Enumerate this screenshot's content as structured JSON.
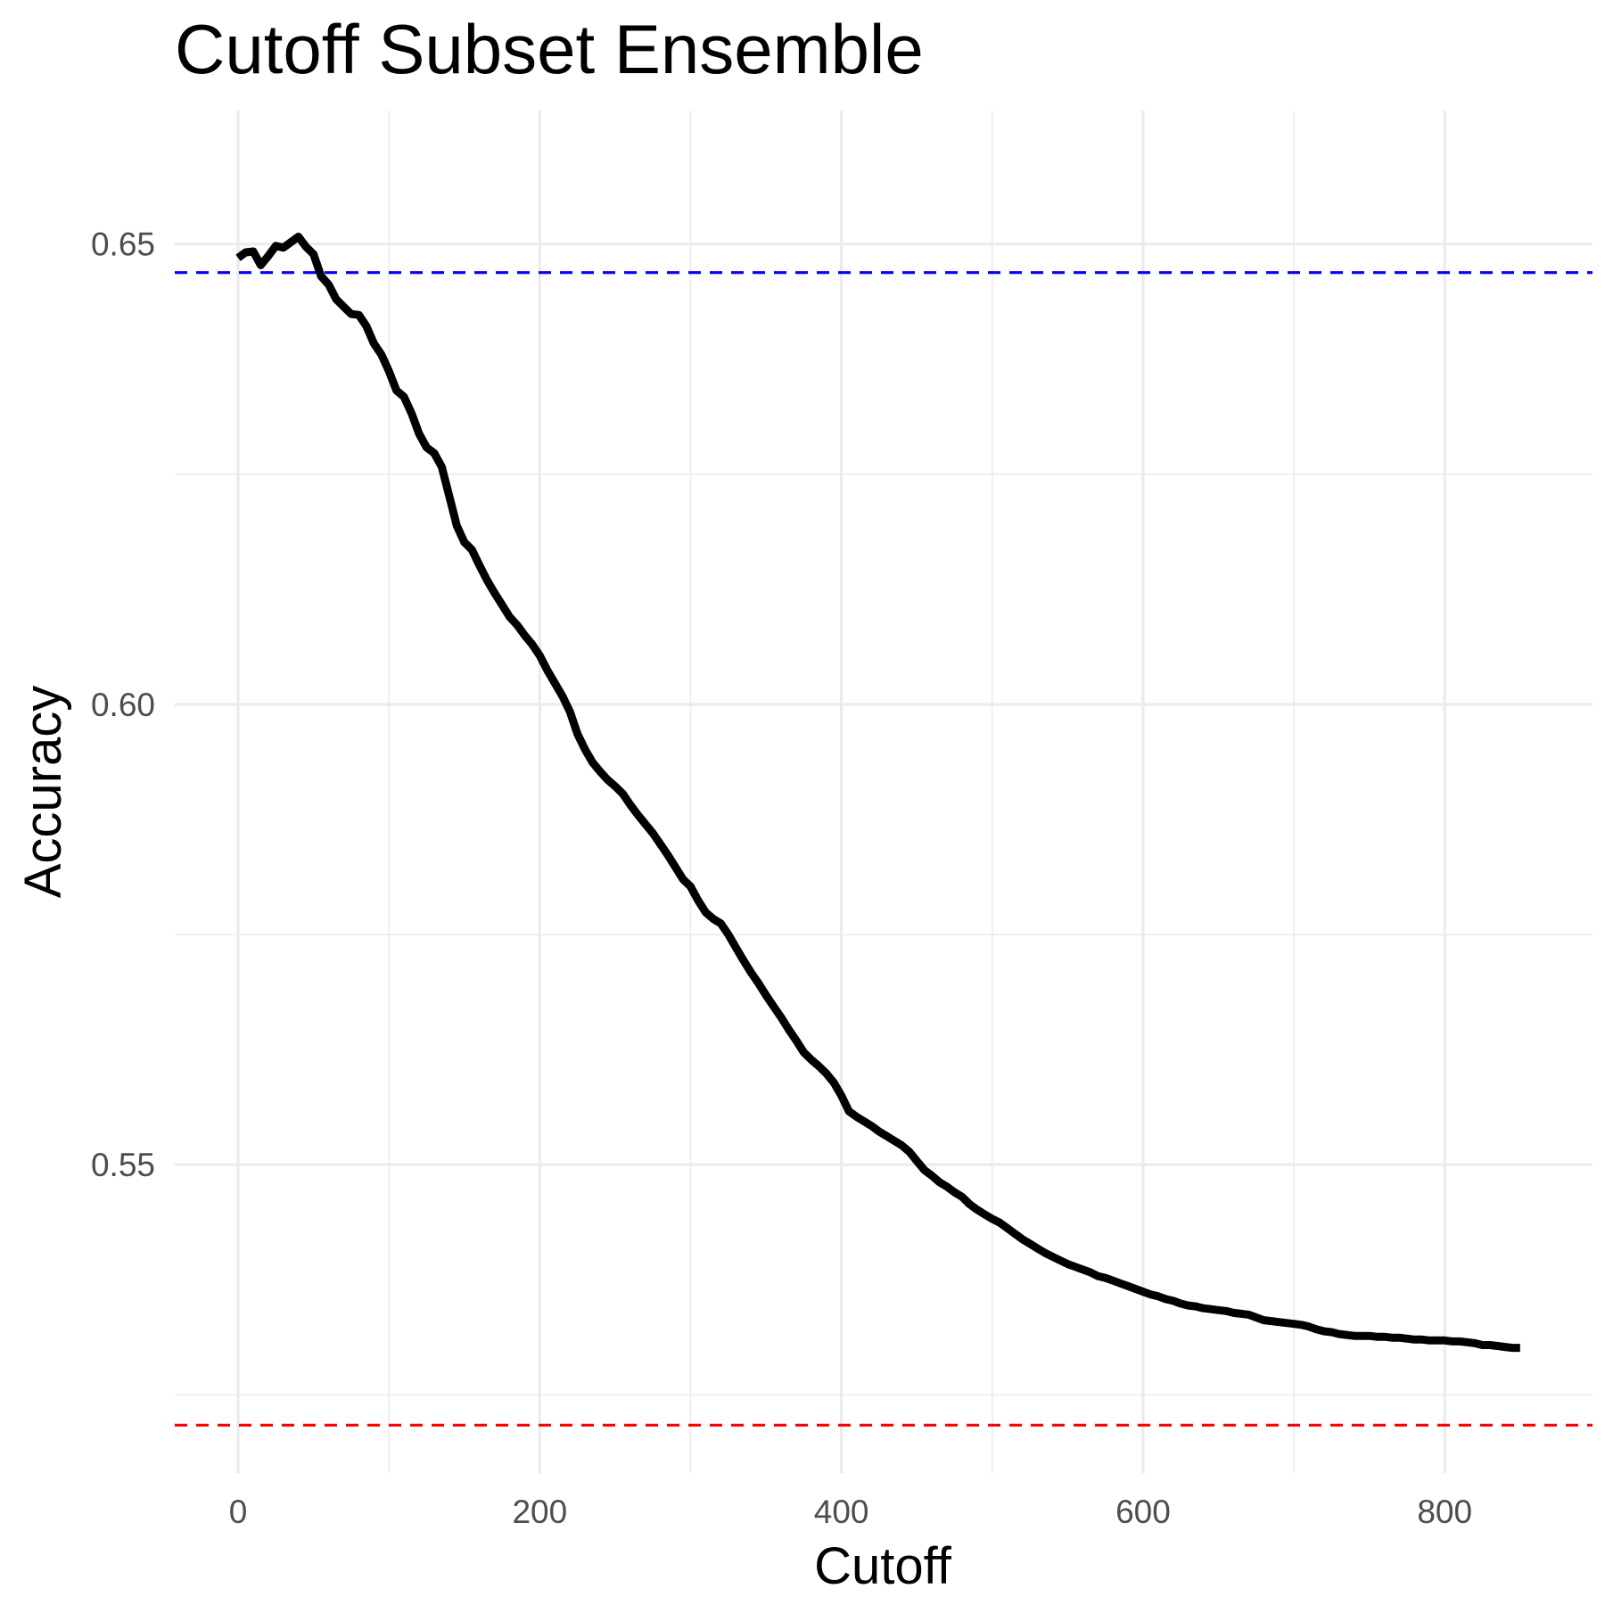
{
  "chart_data": {
    "type": "line",
    "title": "Cutoff Subset Ensemble",
    "xlabel": "Cutoff",
    "ylabel": "Accuracy",
    "xlim": [
      -42,
      898
    ],
    "ylim": [
      0.5165,
      0.6645
    ],
    "x_ticks": [
      0,
      200,
      400,
      600,
      800
    ],
    "x_tick_labels": [
      "0",
      "200",
      "400",
      "600",
      "800"
    ],
    "x_minor_ticks": [
      100,
      300,
      500,
      700
    ],
    "y_ticks": [
      0.55,
      0.6,
      0.65
    ],
    "y_tick_labels": [
      "0.55",
      "0.60",
      "0.65"
    ],
    "y_minor_ticks": [
      0.525,
      0.575,
      0.625
    ],
    "grid": true,
    "legend": "none",
    "series": [
      {
        "color": "#000000",
        "style": "solid",
        "points": [
          [
            0,
            0.6485
          ],
          [
            5,
            0.6491
          ],
          [
            10,
            0.6492
          ],
          [
            15,
            0.6477
          ],
          [
            20,
            0.6487
          ],
          [
            25,
            0.6498
          ],
          [
            30,
            0.6496
          ],
          [
            35,
            0.6502
          ],
          [
            40,
            0.6508
          ],
          [
            45,
            0.6497
          ],
          [
            50,
            0.6489
          ],
          [
            55,
            0.6465
          ],
          [
            60,
            0.6456
          ],
          [
            65,
            0.644
          ],
          [
            70,
            0.6432
          ],
          [
            75,
            0.6424
          ],
          [
            80,
            0.6423
          ],
          [
            85,
            0.6411
          ],
          [
            90,
            0.6392
          ],
          [
            95,
            0.638
          ],
          [
            100,
            0.6362
          ],
          [
            105,
            0.6341
          ],
          [
            110,
            0.6334
          ],
          [
            115,
            0.6316
          ],
          [
            120,
            0.6294
          ],
          [
            125,
            0.6279
          ],
          [
            130,
            0.6273
          ],
          [
            135,
            0.6258
          ],
          [
            140,
            0.6226
          ],
          [
            145,
            0.6194
          ],
          [
            150,
            0.6176
          ],
          [
            155,
            0.6168
          ],
          [
            160,
            0.6151
          ],
          [
            165,
            0.6135
          ],
          [
            170,
            0.6121
          ],
          [
            175,
            0.6108
          ],
          [
            180,
            0.6095
          ],
          [
            185,
            0.6086
          ],
          [
            190,
            0.6075
          ],
          [
            195,
            0.6065
          ],
          [
            200,
            0.6053
          ],
          [
            205,
            0.6037
          ],
          [
            210,
            0.6023
          ],
          [
            215,
            0.6009
          ],
          [
            220,
            0.5992
          ],
          [
            225,
            0.5968
          ],
          [
            230,
            0.5951
          ],
          [
            235,
            0.5937
          ],
          [
            240,
            0.5927
          ],
          [
            245,
            0.5918
          ],
          [
            250,
            0.5911
          ],
          [
            255,
            0.5903
          ],
          [
            260,
            0.5891
          ],
          [
            265,
            0.588
          ],
          [
            270,
            0.587
          ],
          [
            275,
            0.586
          ],
          [
            280,
            0.5848
          ],
          [
            285,
            0.5836
          ],
          [
            290,
            0.5823
          ],
          [
            295,
            0.581
          ],
          [
            300,
            0.5802
          ],
          [
            305,
            0.5787
          ],
          [
            310,
            0.5774
          ],
          [
            315,
            0.5767
          ],
          [
            320,
            0.5762
          ],
          [
            325,
            0.575
          ],
          [
            330,
            0.5736
          ],
          [
            335,
            0.5722
          ],
          [
            340,
            0.5709
          ],
          [
            345,
            0.5697
          ],
          [
            350,
            0.5684
          ],
          [
            355,
            0.5672
          ],
          [
            360,
            0.566
          ],
          [
            365,
            0.5647
          ],
          [
            370,
            0.5635
          ],
          [
            375,
            0.5622
          ],
          [
            380,
            0.5614
          ],
          [
            385,
            0.5607
          ],
          [
            390,
            0.5599
          ],
          [
            395,
            0.5589
          ],
          [
            400,
            0.5575
          ],
          [
            405,
            0.5558
          ],
          [
            410,
            0.5552
          ],
          [
            415,
            0.5547
          ],
          [
            420,
            0.5542
          ],
          [
            425,
            0.5536
          ],
          [
            430,
            0.5531
          ],
          [
            435,
            0.5526
          ],
          [
            440,
            0.5521
          ],
          [
            445,
            0.5514
          ],
          [
            450,
            0.5504
          ],
          [
            455,
            0.5494
          ],
          [
            460,
            0.5488
          ],
          [
            465,
            0.5481
          ],
          [
            470,
            0.5476
          ],
          [
            475,
            0.547
          ],
          [
            480,
            0.5465
          ],
          [
            485,
            0.5457
          ],
          [
            490,
            0.5451
          ],
          [
            495,
            0.5446
          ],
          [
            500,
            0.5441
          ],
          [
            505,
            0.5437
          ],
          [
            510,
            0.5431
          ],
          [
            515,
            0.5425
          ],
          [
            520,
            0.5419
          ],
          [
            525,
            0.5414
          ],
          [
            530,
            0.5409
          ],
          [
            535,
            0.5404
          ],
          [
            540,
            0.54
          ],
          [
            545,
            0.5396
          ],
          [
            550,
            0.5392
          ],
          [
            555,
            0.5389
          ],
          [
            560,
            0.5386
          ],
          [
            565,
            0.5383
          ],
          [
            570,
            0.5379
          ],
          [
            575,
            0.5377
          ],
          [
            580,
            0.5374
          ],
          [
            585,
            0.5371
          ],
          [
            590,
            0.5368
          ],
          [
            595,
            0.5365
          ],
          [
            600,
            0.5362
          ],
          [
            605,
            0.5359
          ],
          [
            610,
            0.5357
          ],
          [
            615,
            0.5354
          ],
          [
            620,
            0.5352
          ],
          [
            625,
            0.5349
          ],
          [
            630,
            0.5347
          ],
          [
            635,
            0.5346
          ],
          [
            640,
            0.5344
          ],
          [
            645,
            0.5343
          ],
          [
            650,
            0.5342
          ],
          [
            655,
            0.5341
          ],
          [
            660,
            0.5339
          ],
          [
            665,
            0.5338
          ],
          [
            670,
            0.5337
          ],
          [
            675,
            0.5334
          ],
          [
            680,
            0.5331
          ],
          [
            685,
            0.533
          ],
          [
            690,
            0.5329
          ],
          [
            695,
            0.5328
          ],
          [
            700,
            0.5327
          ],
          [
            705,
            0.5326
          ],
          [
            710,
            0.5324
          ],
          [
            715,
            0.5321
          ],
          [
            720,
            0.5319
          ],
          [
            725,
            0.5318
          ],
          [
            730,
            0.5316
          ],
          [
            735,
            0.5315
          ],
          [
            740,
            0.5314
          ],
          [
            745,
            0.5314
          ],
          [
            750,
            0.5314
          ],
          [
            755,
            0.5313
          ],
          [
            760,
            0.5313
          ],
          [
            765,
            0.5312
          ],
          [
            770,
            0.5312
          ],
          [
            775,
            0.5311
          ],
          [
            780,
            0.531
          ],
          [
            785,
            0.531
          ],
          [
            790,
            0.5309
          ],
          [
            795,
            0.5309
          ],
          [
            800,
            0.5309
          ],
          [
            805,
            0.5308
          ],
          [
            810,
            0.5308
          ],
          [
            815,
            0.5307
          ],
          [
            820,
            0.5306
          ],
          [
            825,
            0.5304
          ],
          [
            830,
            0.5304
          ],
          [
            835,
            0.5303
          ],
          [
            840,
            0.5302
          ],
          [
            845,
            0.5301
          ],
          [
            850,
            0.5301
          ]
        ]
      }
    ],
    "reference_lines": [
      {
        "orientation": "horizontal",
        "y": 0.6469,
        "color": "#0000ff",
        "style": "dashed"
      },
      {
        "orientation": "horizontal",
        "y": 0.5217,
        "color": "#ff0000",
        "style": "dashed"
      }
    ]
  }
}
